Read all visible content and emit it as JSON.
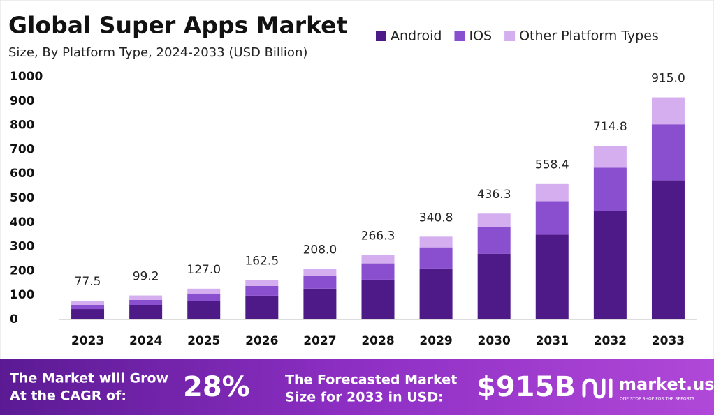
{
  "chart_data": {
    "type": "stacked_bar",
    "title": "Global Super Apps Market",
    "subtitle": "Size, By Platform Type, 2024-2033 (USD Billion)",
    "categories": [
      "2023",
      "2024",
      "2025",
      "2026",
      "2027",
      "2028",
      "2029",
      "2030",
      "2031",
      "2032",
      "2033"
    ],
    "series": [
      {
        "name": "Android",
        "color": "#4e1a87",
        "values": [
          43,
          58,
          75,
          98,
          127,
          164,
          210,
          271,
          349,
          447,
          573
        ]
      },
      {
        "name": "IOS",
        "color": "#8a4fcf",
        "values": [
          17,
          23,
          32,
          40,
          52,
          67,
          87,
          109,
          138,
          178,
          231
        ]
      },
      {
        "name": "Other Platform Types",
        "color": "#d5aef0",
        "values": [
          17,
          18,
          20,
          24,
          29,
          35,
          44,
          56,
          71,
          90,
          111
        ]
      }
    ],
    "totals": [
      77.5,
      99.2,
      127.0,
      162.5,
      208.0,
      266.3,
      340.8,
      436.3,
      558.4,
      714.8,
      915.0
    ],
    "total_labels": [
      "77.5",
      "99.2",
      "127.0",
      "162.5",
      "208.0",
      "266.3",
      "340.8",
      "436.3",
      "558.4",
      "714.8",
      "915.0"
    ],
    "ylim": [
      0,
      1000
    ],
    "yticks": [
      0,
      100,
      200,
      300,
      400,
      500,
      600,
      700,
      800,
      900,
      1000
    ],
    "grid": false,
    "legend": "top-right"
  },
  "footer": {
    "cagr_text": [
      "The Market will Grow",
      "At the CAGR of:"
    ],
    "cagr_value": "28%",
    "forecast_text": [
      "The Forecasted Market",
      "Size for 2033 in USD:"
    ],
    "forecast_value": "$915B",
    "brand": "market.us",
    "tagline": "ONE STOP SHOP FOR THE REPORTS"
  }
}
